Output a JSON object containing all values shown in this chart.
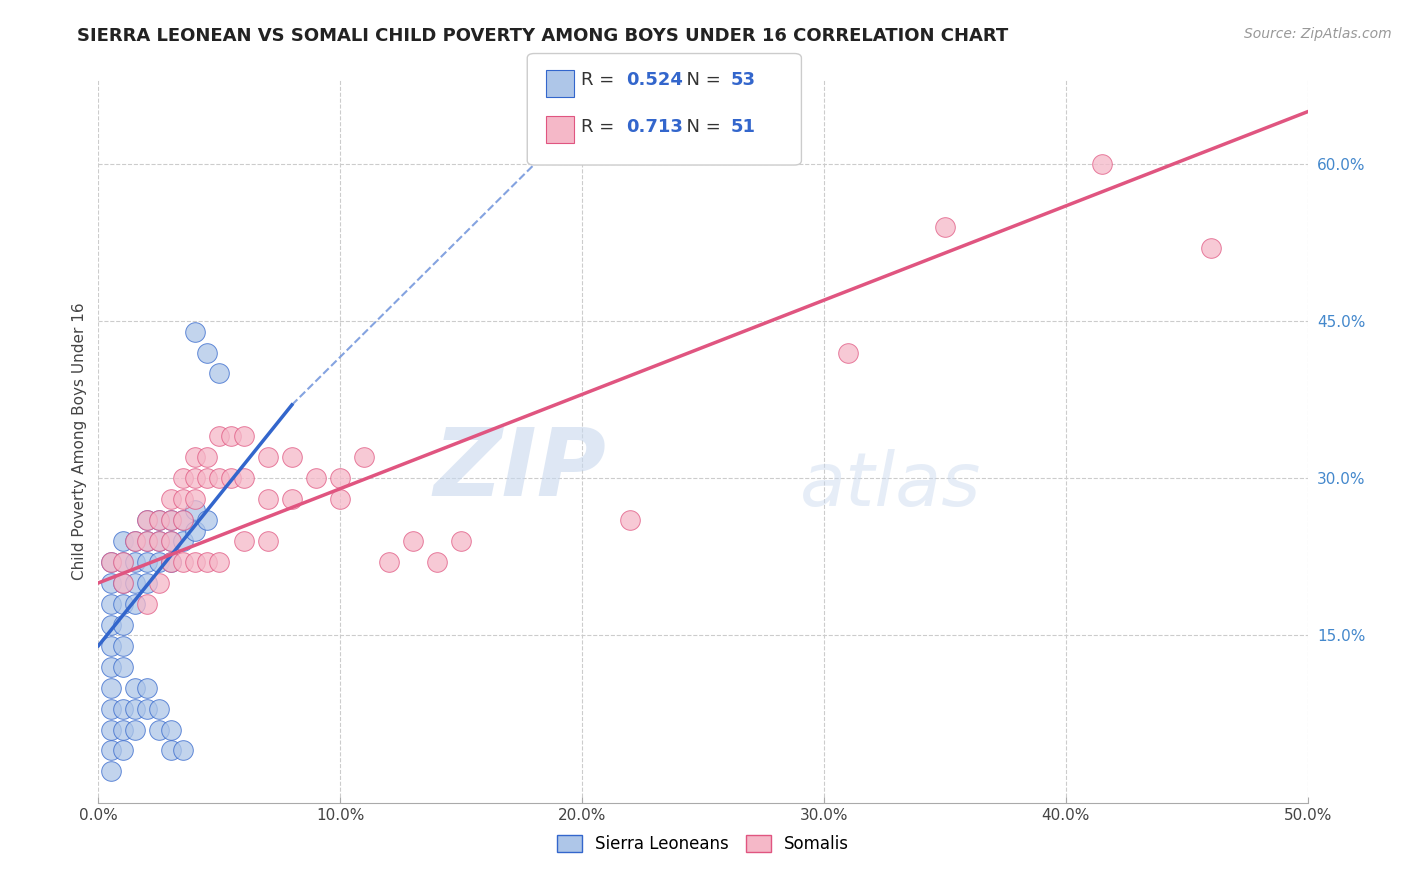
{
  "title": "SIERRA LEONEAN VS SOMALI CHILD POVERTY AMONG BOYS UNDER 16 CORRELATION CHART",
  "source": "Source: ZipAtlas.com",
  "ylabel": "Child Poverty Among Boys Under 16",
  "xlim": [
    0.0,
    0.5
  ],
  "ylim": [
    -0.01,
    0.68
  ],
  "xticks": [
    0.0,
    0.1,
    0.2,
    0.3,
    0.4,
    0.5
  ],
  "xticklabels": [
    "0.0%",
    "10.0%",
    "20.0%",
    "30.0%",
    "40.0%",
    "50.0%"
  ],
  "yticks_right": [
    0.15,
    0.3,
    0.45,
    0.6
  ],
  "ytick_labels_right": [
    "15.0%",
    "30.0%",
    "45.0%",
    "60.0%"
  ],
  "legend_labels": [
    "Sierra Leoneans",
    "Somalis"
  ],
  "r_sl": 0.524,
  "n_sl": 53,
  "r_so": 0.713,
  "n_so": 51,
  "sl_color": "#aec6e8",
  "so_color": "#f5b8c8",
  "sl_line_color": "#3366cc",
  "so_line_color": "#e05580",
  "sl_scatter": [
    [
      0.005,
      0.22
    ],
    [
      0.005,
      0.2
    ],
    [
      0.005,
      0.18
    ],
    [
      0.005,
      0.16
    ],
    [
      0.005,
      0.14
    ],
    [
      0.005,
      0.12
    ],
    [
      0.005,
      0.1
    ],
    [
      0.005,
      0.08
    ],
    [
      0.01,
      0.24
    ],
    [
      0.01,
      0.22
    ],
    [
      0.01,
      0.2
    ],
    [
      0.01,
      0.18
    ],
    [
      0.01,
      0.16
    ],
    [
      0.01,
      0.14
    ],
    [
      0.01,
      0.12
    ],
    [
      0.015,
      0.24
    ],
    [
      0.015,
      0.22
    ],
    [
      0.015,
      0.2
    ],
    [
      0.015,
      0.18
    ],
    [
      0.02,
      0.26
    ],
    [
      0.02,
      0.24
    ],
    [
      0.02,
      0.22
    ],
    [
      0.02,
      0.2
    ],
    [
      0.025,
      0.26
    ],
    [
      0.025,
      0.24
    ],
    [
      0.025,
      0.22
    ],
    [
      0.03,
      0.26
    ],
    [
      0.03,
      0.24
    ],
    [
      0.03,
      0.22
    ],
    [
      0.035,
      0.26
    ],
    [
      0.035,
      0.24
    ],
    [
      0.04,
      0.27
    ],
    [
      0.04,
      0.25
    ],
    [
      0.045,
      0.26
    ],
    [
      0.005,
      0.06
    ],
    [
      0.005,
      0.04
    ],
    [
      0.005,
      0.02
    ],
    [
      0.01,
      0.08
    ],
    [
      0.01,
      0.06
    ],
    [
      0.01,
      0.04
    ],
    [
      0.015,
      0.1
    ],
    [
      0.015,
      0.08
    ],
    [
      0.015,
      0.06
    ],
    [
      0.02,
      0.1
    ],
    [
      0.02,
      0.08
    ],
    [
      0.025,
      0.08
    ],
    [
      0.025,
      0.06
    ],
    [
      0.03,
      0.06
    ],
    [
      0.03,
      0.04
    ],
    [
      0.035,
      0.04
    ],
    [
      0.04,
      0.44
    ],
    [
      0.045,
      0.42
    ],
    [
      0.05,
      0.4
    ]
  ],
  "so_scatter": [
    [
      0.005,
      0.22
    ],
    [
      0.01,
      0.22
    ],
    [
      0.01,
      0.2
    ],
    [
      0.015,
      0.24
    ],
    [
      0.02,
      0.26
    ],
    [
      0.02,
      0.24
    ],
    [
      0.025,
      0.26
    ],
    [
      0.025,
      0.24
    ],
    [
      0.03,
      0.28
    ],
    [
      0.03,
      0.26
    ],
    [
      0.03,
      0.24
    ],
    [
      0.035,
      0.3
    ],
    [
      0.035,
      0.28
    ],
    [
      0.035,
      0.26
    ],
    [
      0.04,
      0.32
    ],
    [
      0.04,
      0.3
    ],
    [
      0.04,
      0.28
    ],
    [
      0.045,
      0.32
    ],
    [
      0.045,
      0.3
    ],
    [
      0.05,
      0.34
    ],
    [
      0.05,
      0.3
    ],
    [
      0.055,
      0.34
    ],
    [
      0.055,
      0.3
    ],
    [
      0.06,
      0.34
    ],
    [
      0.06,
      0.3
    ],
    [
      0.07,
      0.32
    ],
    [
      0.07,
      0.28
    ],
    [
      0.08,
      0.32
    ],
    [
      0.08,
      0.28
    ],
    [
      0.09,
      0.3
    ],
    [
      0.1,
      0.3
    ],
    [
      0.1,
      0.28
    ],
    [
      0.11,
      0.32
    ],
    [
      0.12,
      0.22
    ],
    [
      0.13,
      0.24
    ],
    [
      0.14,
      0.22
    ],
    [
      0.15,
      0.24
    ],
    [
      0.02,
      0.18
    ],
    [
      0.025,
      0.2
    ],
    [
      0.03,
      0.22
    ],
    [
      0.035,
      0.22
    ],
    [
      0.04,
      0.22
    ],
    [
      0.045,
      0.22
    ],
    [
      0.05,
      0.22
    ],
    [
      0.06,
      0.24
    ],
    [
      0.07,
      0.24
    ],
    [
      0.22,
      0.26
    ],
    [
      0.31,
      0.42
    ],
    [
      0.35,
      0.54
    ],
    [
      0.415,
      0.6
    ],
    [
      0.46,
      0.52
    ]
  ],
  "watermark_zip": "ZIP",
  "watermark_atlas": "atlas",
  "background_color": "#ffffff",
  "grid_color": "#cccccc",
  "title_fontsize": 13,
  "axis_label_fontsize": 11
}
